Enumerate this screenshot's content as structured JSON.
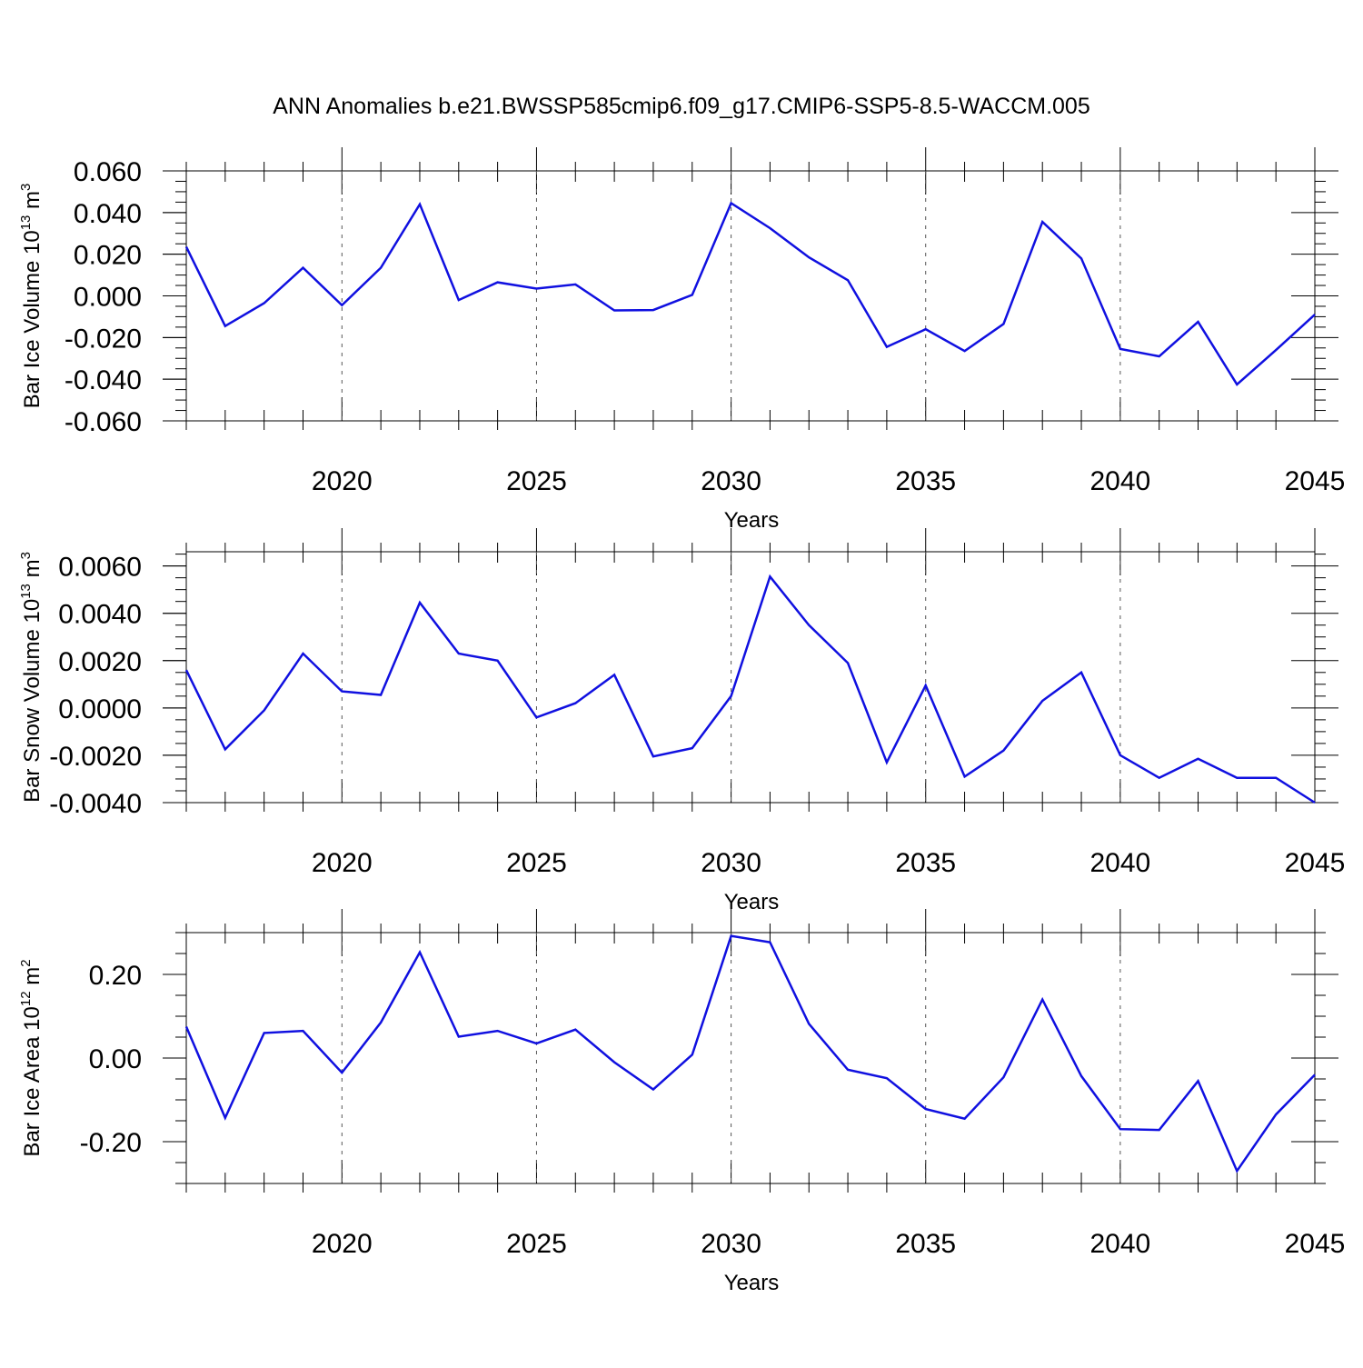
{
  "title": "ANN Anomalies b.e21.BWSSP585cmip6.f09_g17.CMIP6-SSP5-8.5-WACCM.005",
  "line_color": "#1010e0",
  "chart_data": [
    {
      "type": "line",
      "xlabel": "Years",
      "ylabel": "Bar Ice Volume 10",
      "ylabel_exp": "13",
      "ylabel_unit": " m",
      "ylabel_unit_exp": "3",
      "xlim": [
        2016,
        2045
      ],
      "ylim": [
        -0.06,
        0.06
      ],
      "xticks": [
        2020,
        2025,
        2030,
        2035,
        2040,
        2045
      ],
      "xtick_labels": [
        "2020",
        "2025",
        "2030",
        "2035",
        "2040",
        "2045"
      ],
      "yticks": [
        -0.06,
        -0.04,
        -0.02,
        0,
        0.02,
        0.04,
        0.06
      ],
      "ytick_labels": [
        "-0.060",
        "-0.040",
        "-0.020",
        "0.000",
        "0.020",
        "0.040",
        "0.060"
      ],
      "ymin_step": 0.005,
      "grid": "x-dashed",
      "x": [
        2016,
        2017,
        2018,
        2019,
        2020,
        2021,
        2022,
        2023,
        2024,
        2025,
        2026,
        2027,
        2028,
        2029,
        2030,
        2031,
        2032,
        2033,
        2034,
        2035,
        2036,
        2037,
        2038,
        2039,
        2040,
        2041,
        2042,
        2043,
        2044,
        2045
      ],
      "series": [
        {
          "values": [
            0.0235,
            -0.0145,
            -0.0035,
            0.0135,
            -0.0045,
            0.0135,
            0.044,
            -0.002,
            0.0065,
            0.0035,
            0.0055,
            -0.007,
            -0.0068,
            0.0005,
            0.0445,
            0.0325,
            0.0185,
            0.0075,
            -0.0245,
            -0.016,
            -0.0265,
            -0.0135,
            0.0355,
            0.018,
            -0.0255,
            -0.029,
            -0.0125,
            -0.0425,
            -0.026,
            -0.009
          ]
        }
      ]
    },
    {
      "type": "line",
      "xlabel": "Years",
      "ylabel": "Bar Snow Volume 10",
      "ylabel_exp": "13",
      "ylabel_unit": " m",
      "ylabel_unit_exp": "3",
      "xlim": [
        2016,
        2045
      ],
      "ylim": [
        -0.004,
        0.0066
      ],
      "xticks": [
        2020,
        2025,
        2030,
        2035,
        2040,
        2045
      ],
      "xtick_labels": [
        "2020",
        "2025",
        "2030",
        "2035",
        "2040",
        "2045"
      ],
      "yticks": [
        -0.004,
        -0.002,
        0,
        0.002,
        0.004,
        0.006
      ],
      "ytick_labels": [
        "-0.0040",
        "-0.0020",
        "0.0000",
        "0.0020",
        "0.0040",
        "0.0060"
      ],
      "ymin_step": 0.0005,
      "grid": "x-dashed",
      "x": [
        2016,
        2017,
        2018,
        2019,
        2020,
        2021,
        2022,
        2023,
        2024,
        2025,
        2026,
        2027,
        2028,
        2029,
        2030,
        2031,
        2032,
        2033,
        2034,
        2035,
        2036,
        2037,
        2038,
        2039,
        2040,
        2041,
        2042,
        2043,
        2044,
        2045
      ],
      "series": [
        {
          "values": [
            0.0016,
            -0.00175,
            -0.0001,
            0.0023,
            0.0007,
            0.00055,
            0.00445,
            0.0023,
            0.002,
            -0.0004,
            0.0002,
            0.0014,
            -0.00205,
            -0.0017,
            0.0005,
            0.00555,
            0.0035,
            0.0019,
            -0.0023,
            0.00095,
            -0.0029,
            -0.0018,
            0.0003,
            0.0015,
            -0.002,
            -0.00295,
            -0.00215,
            -0.00295,
            -0.00295,
            -0.004
          ]
        }
      ]
    },
    {
      "type": "line",
      "xlabel": "Years",
      "ylabel": "Bar Ice Area 10",
      "ylabel_exp": "12",
      "ylabel_unit": " m",
      "ylabel_unit_exp": "2",
      "xlim": [
        2016,
        2045
      ],
      "ylim": [
        -0.3,
        0.3
      ],
      "xticks": [
        2020,
        2025,
        2030,
        2035,
        2040,
        2045
      ],
      "xtick_labels": [
        "2020",
        "2025",
        "2030",
        "2035",
        "2040",
        "2045"
      ],
      "yticks": [
        -0.2,
        0,
        0.2
      ],
      "ytick_labels": [
        "-0.20",
        "0.00",
        "0.20"
      ],
      "ymin_step": 0.05,
      "grid": "x-dashed",
      "x": [
        2016,
        2017,
        2018,
        2019,
        2020,
        2021,
        2022,
        2023,
        2024,
        2025,
        2026,
        2027,
        2028,
        2029,
        2030,
        2031,
        2032,
        2033,
        2034,
        2035,
        2036,
        2037,
        2038,
        2039,
        2040,
        2041,
        2042,
        2043,
        2044,
        2045
      ],
      "series": [
        {
          "values": [
            0.075,
            -0.143,
            0.06,
            0.065,
            -0.035,
            0.085,
            0.253,
            0.051,
            0.065,
            0.035,
            0.068,
            -0.01,
            -0.075,
            0.008,
            0.292,
            0.277,
            0.082,
            -0.028,
            -0.048,
            -0.122,
            -0.145,
            -0.046,
            0.14,
            -0.043,
            -0.17,
            -0.172,
            -0.055,
            -0.27,
            -0.135,
            -0.04
          ]
        }
      ]
    }
  ]
}
